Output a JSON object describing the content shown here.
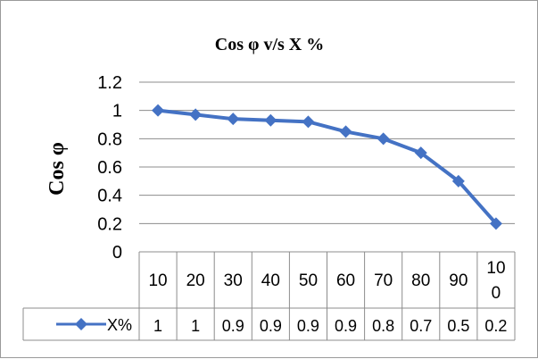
{
  "chart_data": {
    "type": "line",
    "title": "Cos φ  v/s  X %",
    "ylabel": "Cos φ",
    "xlabel": "",
    "ylim": [
      0,
      1.2
    ],
    "yticks": [
      "1.2",
      "1",
      "0.8",
      "0.6",
      "0.4",
      "0.2",
      "0"
    ],
    "categories": [
      "10",
      "20",
      "30",
      "40",
      "50",
      "60",
      "70",
      "80",
      "90",
      "100"
    ],
    "series": [
      {
        "name": "X%",
        "values": [
          1.0,
          0.97,
          0.94,
          0.93,
          0.92,
          0.85,
          0.8,
          0.7,
          0.5,
          0.2
        ],
        "table_values": [
          "1",
          "1",
          "0.9",
          "0.9",
          "0.9",
          "0.9",
          "0.8",
          "0.7",
          "0.5",
          "0.2"
        ],
        "color": "#4472c4"
      }
    ],
    "grid": true,
    "legend": "data-table"
  }
}
